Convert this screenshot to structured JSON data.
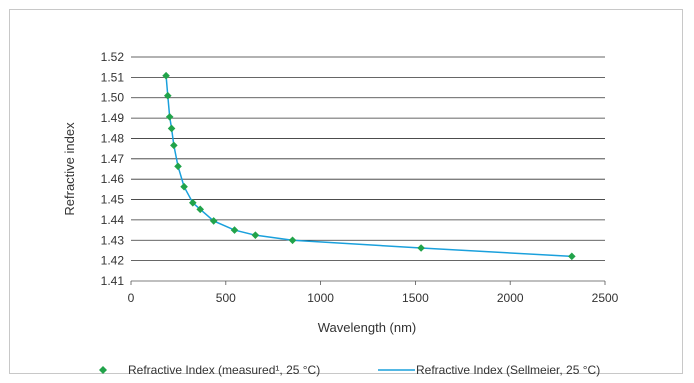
{
  "chart_data": {
    "type": "line",
    "xlabel": "Wavelength (nm)",
    "ylabel": "Refractive index",
    "xlim": [
      0,
      2500
    ],
    "ylim": [
      1.41,
      1.52
    ],
    "x_ticks": [
      "0",
      "500",
      "1000",
      "1500",
      "2000",
      "2500"
    ],
    "y_ticks": [
      "1.41",
      "1.42",
      "1.43",
      "1.44",
      "1.45",
      "1.46",
      "1.47",
      "1.48",
      "1.49",
      "1.50",
      "1.51",
      "1.52"
    ],
    "grid": "horizontal",
    "legend_position": "bottom",
    "series": [
      {
        "name": "Refractive Index (measured¹, 25 °C)",
        "style": "markers",
        "color": "#21a34a",
        "points": [
          [
            185,
            1.5108
          ],
          [
            194,
            1.501
          ],
          [
            204,
            1.4906
          ],
          [
            214,
            1.4849
          ],
          [
            226,
            1.4766
          ],
          [
            248,
            1.4663
          ],
          [
            280,
            1.4563
          ],
          [
            326,
            1.4484
          ],
          [
            365,
            1.4452
          ],
          [
            436,
            1.4395
          ],
          [
            546,
            1.435
          ],
          [
            656,
            1.4325
          ],
          [
            852,
            1.43
          ],
          [
            1530,
            1.4262
          ],
          [
            2325,
            1.4221
          ]
        ]
      },
      {
        "name": "Refractive Index (Sellmeier, 25 °C)",
        "style": "line",
        "color": "#1aa0dc",
        "points": [
          [
            185,
            1.5108
          ],
          [
            194,
            1.501
          ],
          [
            204,
            1.4906
          ],
          [
            214,
            1.4849
          ],
          [
            226,
            1.4766
          ],
          [
            248,
            1.4663
          ],
          [
            280,
            1.4563
          ],
          [
            326,
            1.4484
          ],
          [
            365,
            1.4452
          ],
          [
            436,
            1.4395
          ],
          [
            546,
            1.435
          ],
          [
            656,
            1.4325
          ],
          [
            852,
            1.43
          ],
          [
            1530,
            1.4262
          ],
          [
            2325,
            1.4221
          ]
        ]
      }
    ]
  }
}
